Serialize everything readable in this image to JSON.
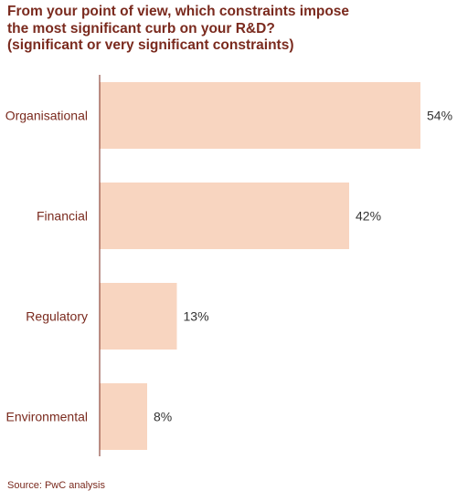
{
  "colors": {
    "bar": "#f8d5c0",
    "axis": "#7a2a1e",
    "label_text": "#7a2a1e",
    "value_text": "#333333"
  },
  "chart_data": {
    "type": "bar",
    "orientation": "horizontal",
    "title_lines": [
      "From your point of view, which constraints impose",
      "the most significant curb on your R&D?",
      "(significant or very significant constraints)"
    ],
    "categories": [
      "Organisational",
      "Financial",
      "Regulatory",
      "Environmental"
    ],
    "values": [
      54,
      42,
      13,
      8
    ],
    "value_labels": [
      "54%",
      "42%",
      "13%",
      "8%"
    ],
    "unit": "%",
    "xlim": [
      0,
      54
    ],
    "grid": false,
    "legend": "none"
  },
  "footer": {
    "source": "Source: PwC analysis"
  }
}
